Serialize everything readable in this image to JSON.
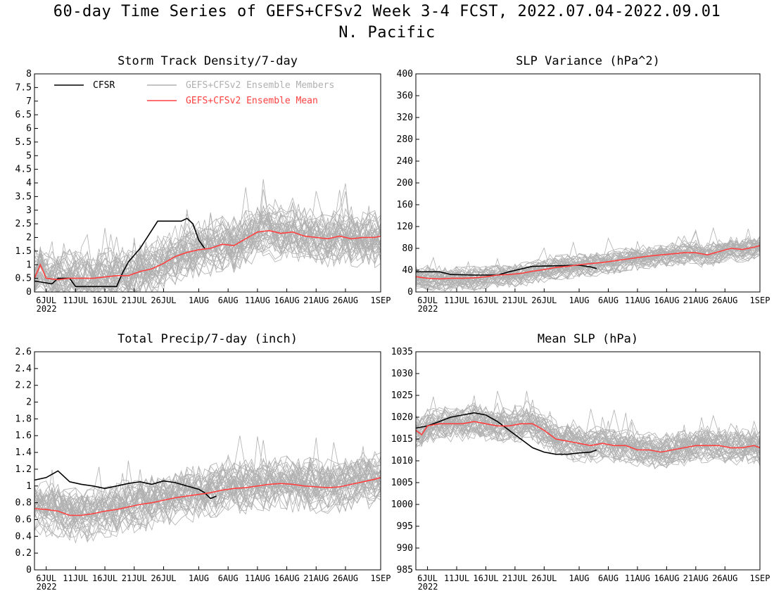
{
  "header": {
    "title": "60-day Time Series of GEFS+CFSv2 Week 3-4 FCST, 2022.07.04-2022.09.01",
    "region": "N. Pacific"
  },
  "legend": [
    {
      "name": "CFSR",
      "color": "#000000"
    },
    {
      "name": "GEFS+CFSv2 Ensemble Members",
      "color": "#b0b0b0"
    },
    {
      "name": "GEFS+CFSv2 Ensemble Mean",
      "color": "#ff4040"
    }
  ],
  "chart_data": [
    {
      "type": "line",
      "title": "Storm Track Density/7-day",
      "x_tick_labels": [
        "6JUL",
        "11JUL",
        "16JUL",
        "21JUL",
        "26JUL",
        "1AUG",
        "6AUG",
        "11AUG",
        "16AUG",
        "21AUG",
        "26AUG",
        "1SEP"
      ],
      "x_year_label": "2022",
      "ylim": [
        0,
        8
      ],
      "yticks": [
        0,
        0.5,
        1,
        1.5,
        2,
        2.5,
        3,
        3.5,
        4,
        4.5,
        5,
        5.5,
        6,
        6.5,
        7,
        7.5,
        8
      ],
      "members": {
        "count": 40,
        "spread": 0.55,
        "spike_max": 5.1
      },
      "series": [
        {
          "name": "CFSR",
          "points": [
            [
              0,
              0.4
            ],
            [
              3,
              0.3
            ],
            [
              4,
              0.5
            ],
            [
              6,
              0.5
            ],
            [
              7,
              0.2
            ],
            [
              14,
              0.2
            ],
            [
              15,
              0.7
            ],
            [
              16,
              1.1
            ],
            [
              18,
              1.6
            ],
            [
              21,
              2.6
            ],
            [
              25,
              2.6
            ],
            [
              26,
              2.7
            ],
            [
              27,
              2.5
            ],
            [
              28,
              1.9
            ],
            [
              29,
              1.6
            ]
          ]
        },
        {
          "name": "GEFS+CFSv2 Ensemble Mean",
          "points": [
            [
              0,
              0.5
            ],
            [
              1,
              1.0
            ],
            [
              2,
              0.5
            ],
            [
              4,
              0.45
            ],
            [
              6,
              0.5
            ],
            [
              8,
              0.5
            ],
            [
              10,
              0.5
            ],
            [
              12,
              0.55
            ],
            [
              14,
              0.6
            ],
            [
              16,
              0.6
            ],
            [
              18,
              0.75
            ],
            [
              20,
              0.85
            ],
            [
              22,
              1.05
            ],
            [
              24,
              1.3
            ],
            [
              26,
              1.45
            ],
            [
              28,
              1.55
            ],
            [
              30,
              1.6
            ],
            [
              32,
              1.75
            ],
            [
              34,
              1.7
            ],
            [
              36,
              1.95
            ],
            [
              38,
              2.2
            ],
            [
              40,
              2.25
            ],
            [
              42,
              2.15
            ],
            [
              44,
              2.2
            ],
            [
              46,
              2.05
            ],
            [
              48,
              2.0
            ],
            [
              50,
              1.95
            ],
            [
              52,
              2.05
            ],
            [
              54,
              1.95
            ],
            [
              56,
              2.0
            ],
            [
              58,
              2.0
            ],
            [
              59,
              2.05
            ]
          ]
        }
      ]
    },
    {
      "type": "line",
      "title": "SLP Variance (hPa^2)",
      "x_tick_labels": [
        "6JUL",
        "11JUL",
        "16JUL",
        "21JUL",
        "26JUL",
        "1AUG",
        "6AUG",
        "11AUG",
        "16AUG",
        "21AUG",
        "26AUG",
        "1SEP"
      ],
      "x_year_label": "2022",
      "ylim": [
        0,
        400
      ],
      "yticks": [
        0,
        40,
        80,
        120,
        160,
        200,
        240,
        280,
        320,
        360,
        400
      ],
      "members": {
        "count": 40,
        "spread": 12,
        "spike_max": 160
      },
      "series": [
        {
          "name": "CFSR",
          "points": [
            [
              0,
              37
            ],
            [
              4,
              37
            ],
            [
              6,
              32
            ],
            [
              10,
              31
            ],
            [
              14,
              31
            ],
            [
              16,
              37
            ],
            [
              18,
              42
            ],
            [
              20,
              47
            ],
            [
              24,
              48
            ],
            [
              28,
              49
            ],
            [
              30,
              46
            ],
            [
              31,
              43
            ]
          ]
        },
        {
          "name": "GEFS+CFSv2 Ensemble Mean",
          "points": [
            [
              0,
              28
            ],
            [
              2,
              25
            ],
            [
              4,
              24
            ],
            [
              6,
              25
            ],
            [
              8,
              25
            ],
            [
              10,
              26
            ],
            [
              12,
              28
            ],
            [
              14,
              31
            ],
            [
              16,
              32
            ],
            [
              18,
              34
            ],
            [
              20,
              38
            ],
            [
              22,
              41
            ],
            [
              24,
              45
            ],
            [
              26,
              47
            ],
            [
              28,
              50
            ],
            [
              30,
              52
            ],
            [
              32,
              54
            ],
            [
              34,
              57
            ],
            [
              36,
              60
            ],
            [
              38,
              63
            ],
            [
              40,
              66
            ],
            [
              42,
              68
            ],
            [
              44,
              70
            ],
            [
              46,
              72
            ],
            [
              48,
              72
            ],
            [
              50,
              68
            ],
            [
              52,
              74
            ],
            [
              54,
              80
            ],
            [
              56,
              78
            ],
            [
              58,
              82
            ],
            [
              59,
              85
            ]
          ]
        }
      ]
    },
    {
      "type": "line",
      "title": "Total Precip/7-day (inch)",
      "x_tick_labels": [
        "6JUL",
        "11JUL",
        "16JUL",
        "21JUL",
        "26JUL",
        "1AUG",
        "6AUG",
        "11AUG",
        "16AUG",
        "21AUG",
        "26AUG",
        "1SEP"
      ],
      "x_year_label": "2022",
      "ylim": [
        0,
        2.6
      ],
      "yticks": [
        0,
        0.2,
        0.4,
        0.6,
        0.8,
        1,
        1.2,
        1.4,
        1.6,
        1.8,
        2,
        2.2,
        2.4,
        2.6
      ],
      "members": {
        "count": 40,
        "spread": 0.17,
        "spike_max": 1.6
      },
      "series": [
        {
          "name": "CFSR",
          "points": [
            [
              0,
              1.07
            ],
            [
              2,
              1.1
            ],
            [
              4,
              1.18
            ],
            [
              6,
              1.05
            ],
            [
              8,
              1.02
            ],
            [
              10,
              1.0
            ],
            [
              12,
              0.97
            ],
            [
              14,
              1.0
            ],
            [
              16,
              1.03
            ],
            [
              18,
              1.05
            ],
            [
              20,
              1.02
            ],
            [
              22,
              1.06
            ],
            [
              24,
              1.04
            ],
            [
              26,
              1.0
            ],
            [
              28,
              0.96
            ],
            [
              29,
              0.92
            ],
            [
              30,
              0.85
            ],
            [
              31,
              0.88
            ]
          ]
        },
        {
          "name": "GEFS+CFSv2 Ensemble Mean",
          "points": [
            [
              0,
              0.73
            ],
            [
              2,
              0.72
            ],
            [
              4,
              0.7
            ],
            [
              6,
              0.65
            ],
            [
              8,
              0.65
            ],
            [
              10,
              0.67
            ],
            [
              12,
              0.7
            ],
            [
              14,
              0.72
            ],
            [
              16,
              0.75
            ],
            [
              18,
              0.78
            ],
            [
              20,
              0.8
            ],
            [
              22,
              0.83
            ],
            [
              24,
              0.86
            ],
            [
              26,
              0.88
            ],
            [
              28,
              0.9
            ],
            [
              30,
              0.92
            ],
            [
              32,
              0.95
            ],
            [
              34,
              0.97
            ],
            [
              36,
              0.98
            ],
            [
              38,
              1.0
            ],
            [
              40,
              1.02
            ],
            [
              42,
              1.03
            ],
            [
              44,
              1.02
            ],
            [
              46,
              1.0
            ],
            [
              48,
              0.99
            ],
            [
              50,
              0.98
            ],
            [
              52,
              0.99
            ],
            [
              54,
              1.02
            ],
            [
              56,
              1.05
            ],
            [
              58,
              1.08
            ],
            [
              59,
              1.1
            ]
          ]
        }
      ]
    },
    {
      "type": "line",
      "title": "Mean SLP (hPa)",
      "x_tick_labels": [
        "6JUL",
        "11JUL",
        "16JUL",
        "21JUL",
        "26JUL",
        "1AUG",
        "6AUG",
        "11AUG",
        "16AUG",
        "21AUG",
        "26AUG",
        "1SEP"
      ],
      "x_year_label": "2022",
      "ylim": [
        985,
        1035
      ],
      "yticks": [
        985,
        990,
        995,
        1000,
        1005,
        1010,
        1015,
        1020,
        1025,
        1030,
        1035
      ],
      "members": {
        "count": 40,
        "spread": 2.2,
        "spike_max": 1026
      },
      "series": [
        {
          "name": "CFSR",
          "points": [
            [
              0,
              1017.5
            ],
            [
              2,
              1018
            ],
            [
              4,
              1019
            ],
            [
              6,
              1020
            ],
            [
              8,
              1020.5
            ],
            [
              10,
              1021
            ],
            [
              12,
              1020.5
            ],
            [
              14,
              1019
            ],
            [
              16,
              1017
            ],
            [
              18,
              1015
            ],
            [
              20,
              1013
            ],
            [
              22,
              1012
            ],
            [
              24,
              1011.5
            ],
            [
              26,
              1011.5
            ],
            [
              28,
              1011.8
            ],
            [
              30,
              1012
            ],
            [
              31,
              1012.5
            ]
          ]
        },
        {
          "name": "GEFS+CFSv2 Ensemble Mean",
          "points": [
            [
              0,
              1017
            ],
            [
              1,
              1016
            ],
            [
              2,
              1018
            ],
            [
              4,
              1018.5
            ],
            [
              6,
              1018.5
            ],
            [
              8,
              1018.5
            ],
            [
              10,
              1019
            ],
            [
              12,
              1018.5
            ],
            [
              14,
              1018
            ],
            [
              16,
              1018
            ],
            [
              18,
              1018.5
            ],
            [
              20,
              1018.5
            ],
            [
              22,
              1017
            ],
            [
              24,
              1015
            ],
            [
              26,
              1014.5
            ],
            [
              28,
              1014
            ],
            [
              30,
              1013.5
            ],
            [
              32,
              1014
            ],
            [
              34,
              1013.5
            ],
            [
              36,
              1013.5
            ],
            [
              38,
              1012.5
            ],
            [
              40,
              1012.5
            ],
            [
              42,
              1012
            ],
            [
              44,
              1012.5
            ],
            [
              46,
              1013
            ],
            [
              48,
              1013.5
            ],
            [
              50,
              1013.5
            ],
            [
              52,
              1013.5
            ],
            [
              54,
              1013
            ],
            [
              56,
              1013
            ],
            [
              58,
              1013.5
            ],
            [
              59,
              1013
            ]
          ]
        }
      ]
    }
  ]
}
